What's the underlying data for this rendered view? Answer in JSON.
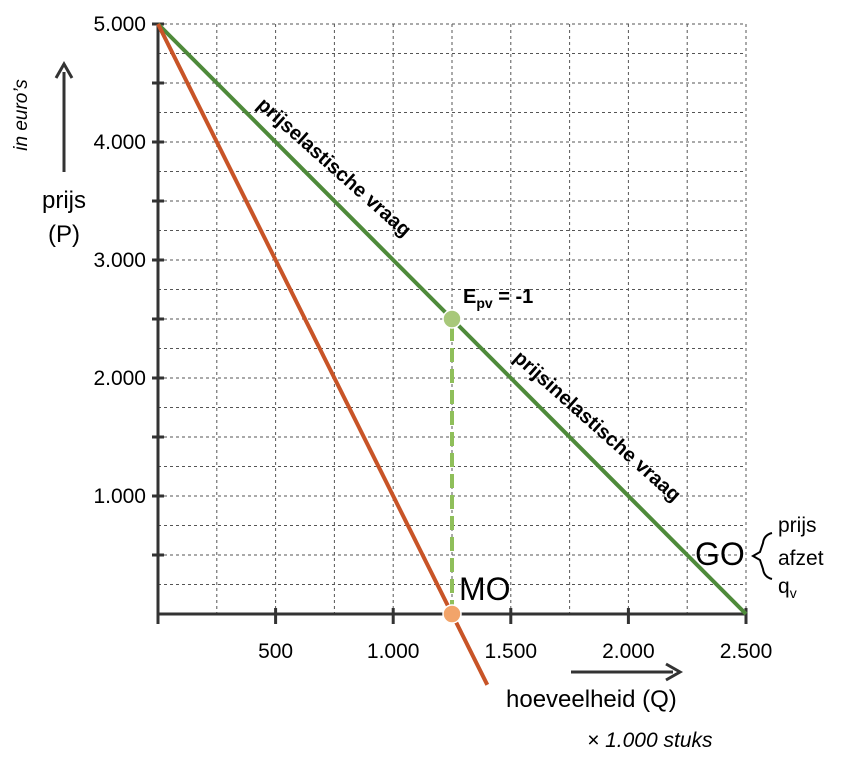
{
  "chart_data": {
    "type": "line",
    "x_ticks": [
      {
        "value": 500,
        "label": "500"
      },
      {
        "value": 1000,
        "label": "1.000"
      },
      {
        "value": 1500,
        "label": "1.500"
      },
      {
        "value": 2000,
        "label": "2.000"
      },
      {
        "value": 2500,
        "label": "2.500"
      }
    ],
    "y_ticks": [
      {
        "value": 1000,
        "label": "1.000"
      },
      {
        "value": 2000,
        "label": "2.000"
      },
      {
        "value": 3000,
        "label": "3.000"
      },
      {
        "value": 4000,
        "label": "4.000"
      },
      {
        "value": 5000,
        "label": "5.000"
      }
    ],
    "xlim": [
      0,
      2500
    ],
    "ylim": [
      0,
      5000
    ],
    "grid": true,
    "series": [
      {
        "name": "GO",
        "color": "#4e8a3a",
        "points": [
          [
            0,
            5000
          ],
          [
            2500,
            0
          ]
        ]
      },
      {
        "name": "MO",
        "color": "#c85427",
        "points": [
          [
            0,
            5000
          ],
          [
            1400,
            -600
          ]
        ]
      }
    ],
    "highlight_points": [
      {
        "x": 1250,
        "y": 2500,
        "color": "#a8c87a",
        "label": "E",
        "label_sub": "pv",
        "label_rest": " = -1"
      },
      {
        "x": 1250,
        "y": 0,
        "color": "#f2a46a"
      }
    ],
    "guide_line": {
      "x": 1250,
      "y_from": 2500,
      "y_to": 0,
      "color": "#8fbf5a"
    },
    "annotations": {
      "elastic": "prijselastische vraag",
      "inelastic": "prijsinelastische vraag",
      "go": "GO",
      "mo": "MO",
      "go_brace_items": [
        "prijs",
        "afzet"
      ],
      "go_brace_q": "q",
      "go_brace_q_sub": "v"
    },
    "ylabel_unit": "in euro’s",
    "ylabel_line1": "prijs",
    "ylabel_line2": "(P)",
    "xlabel": "hoeveelheid (Q)",
    "xlabel_unit": "× 1.000 stuks"
  }
}
